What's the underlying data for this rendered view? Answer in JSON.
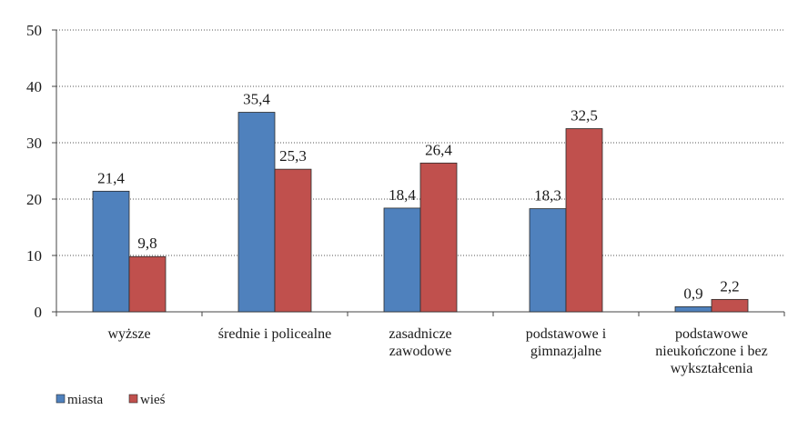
{
  "chart_data": {
    "type": "bar",
    "categories": [
      [
        "wyższe"
      ],
      [
        "średnie i policealne"
      ],
      [
        "zasadnicze",
        "zawodowe"
      ],
      [
        "podstawowe i",
        "gimnazjalne"
      ],
      [
        "podstawowe",
        "nieukończone i bez",
        "wykształcenia"
      ]
    ],
    "series": [
      {
        "name": "miasta",
        "color": "#4f81bd",
        "values": [
          21.4,
          35.4,
          18.4,
          18.3,
          0.9
        ],
        "labels": [
          "21,4",
          "35,4",
          "18,4",
          "18,3",
          "0,9"
        ]
      },
      {
        "name": "wieś",
        "color": "#c0504d",
        "values": [
          9.8,
          25.3,
          26.4,
          32.5,
          2.2
        ],
        "labels": [
          "9,8",
          "25,3",
          "26,4",
          "32,5",
          "2,2"
        ]
      }
    ],
    "ylim": [
      0,
      50
    ],
    "yticks": [
      0,
      10,
      20,
      30,
      40,
      50
    ],
    "ytick_labels": [
      "0",
      "10",
      "20",
      "30",
      "40",
      "50"
    ],
    "grid": true,
    "legend_position": "bottom-left",
    "title": "",
    "xlabel": "",
    "ylabel": ""
  }
}
